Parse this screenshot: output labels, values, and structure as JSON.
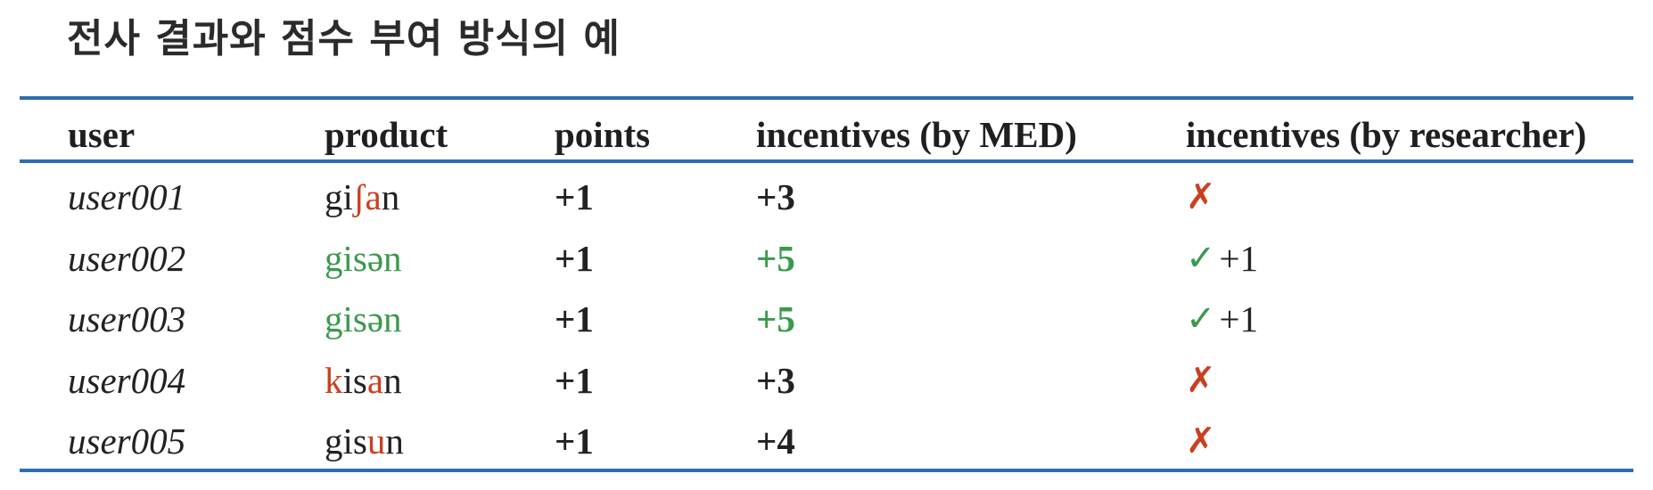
{
  "title": "전사 결과와 점수 부여 방식의 예",
  "columns": {
    "user": "user",
    "product": "product",
    "points": "points",
    "incentives_med": "incentives (by MED)",
    "incentives_researcher": "incentives (by researcher)"
  },
  "rows": [
    {
      "user": "user001",
      "product_parts": [
        {
          "text": "gi",
          "color": "normal"
        },
        {
          "text": "ʃa",
          "color": "red"
        },
        {
          "text": "n",
          "color": "normal"
        }
      ],
      "points": "+1",
      "incentives_med": "+3",
      "incentives_med_color": "normal",
      "researcher_mark": "✗",
      "researcher_mark_type": "cross",
      "researcher_bonus": ""
    },
    {
      "user": "user002",
      "product_parts": [
        {
          "text": "gisən",
          "color": "green"
        }
      ],
      "points": "+1",
      "incentives_med": "+5",
      "incentives_med_color": "green",
      "researcher_mark": "✓",
      "researcher_mark_type": "check",
      "researcher_bonus": "+1"
    },
    {
      "user": "user003",
      "product_parts": [
        {
          "text": "gisən",
          "color": "green"
        }
      ],
      "points": "+1",
      "incentives_med": "+5",
      "incentives_med_color": "green",
      "researcher_mark": "✓",
      "researcher_mark_type": "check",
      "researcher_bonus": "+1"
    },
    {
      "user": "user004",
      "product_parts": [
        {
          "text": "k",
          "color": "red"
        },
        {
          "text": "is",
          "color": "normal"
        },
        {
          "text": "a",
          "color": "red"
        },
        {
          "text": "n",
          "color": "normal"
        }
      ],
      "points": "+1",
      "incentives_med": "+3",
      "incentives_med_color": "normal",
      "researcher_mark": "✗",
      "researcher_mark_type": "cross",
      "researcher_bonus": ""
    },
    {
      "user": "user005",
      "product_parts": [
        {
          "text": "gis",
          "color": "normal"
        },
        {
          "text": "u",
          "color": "red"
        },
        {
          "text": "n",
          "color": "normal"
        }
      ],
      "points": "+1",
      "incentives_med": "+4",
      "incentives_med_color": "normal",
      "researcher_mark": "✗",
      "researcher_mark_type": "cross",
      "researcher_bonus": ""
    }
  ],
  "colors": {
    "rule": "#2e6db4",
    "highlight_red": "#c9401f",
    "highlight_green": "#3a9a4c"
  }
}
